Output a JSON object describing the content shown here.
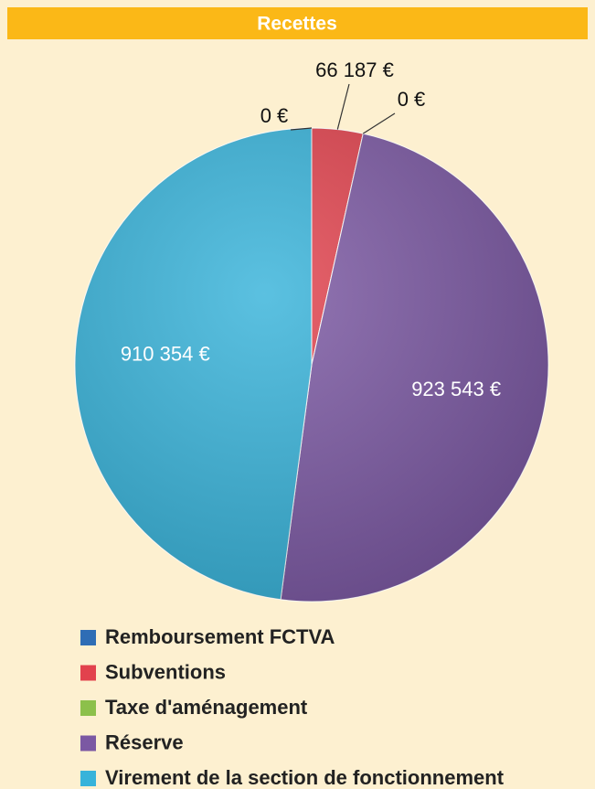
{
  "chart_data": {
    "type": "pie",
    "title": "Recettes",
    "categories": [
      "Remboursement FCTVA",
      "Subventions",
      "Taxe d'aménagement",
      "Réserve",
      "Virement de la section de fonctionnement"
    ],
    "values": [
      0,
      66187,
      0,
      923543,
      910354
    ],
    "value_labels": [
      "0 €",
      "66 187 €",
      "0 €",
      "923 543 €",
      "910 354 €"
    ],
    "colors": [
      "#2e6db5",
      "#e2424d",
      "#8cc04b",
      "#7b58a3",
      "#37b3da"
    ],
    "legend": "bottom"
  }
}
